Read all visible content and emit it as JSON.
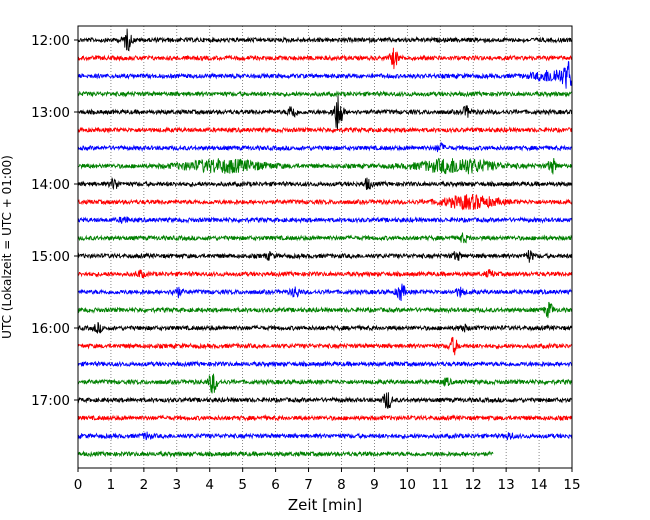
{
  "chart_data": {
    "type": "line",
    "title": "",
    "xlabel": "Zeit  [min]",
    "ylabel": "UTC (Lokalzeit = UTC + 01:00)",
    "xlim": [
      0,
      15
    ],
    "x_ticks": [
      "0",
      "1",
      "2",
      "3",
      "4",
      "5",
      "6",
      "7",
      "8",
      "9",
      "10",
      "11",
      "12",
      "13",
      "14",
      "15"
    ],
    "y_tick_labels": [
      "12:00",
      "13:00",
      "14:00",
      "15:00",
      "16:00",
      "17:00"
    ],
    "grid": "vertical dotted",
    "trace_colors": [
      "#000000",
      "#ff0000",
      "#0000ff",
      "#008000"
    ],
    "traces": [
      {
        "start": "12:00",
        "end_min": 15,
        "color": "#000000",
        "events": [
          {
            "t": 1.5,
            "amp": 10
          }
        ]
      },
      {
        "start": "12:15",
        "end_min": 15,
        "color": "#ff0000",
        "events": [
          {
            "t": 9.6,
            "amp": 9
          }
        ]
      },
      {
        "start": "12:30",
        "end_min": 15,
        "color": "#0000ff",
        "events": [
          {
            "t": 14.5,
            "amp": 6,
            "width": 0.6
          },
          {
            "t": 14.9,
            "amp": 11
          }
        ]
      },
      {
        "start": "12:45",
        "end_min": 15,
        "color": "#008000",
        "events": []
      },
      {
        "start": "13:00",
        "end_min": 15,
        "color": "#000000",
        "events": [
          {
            "t": 6.5,
            "amp": 7
          },
          {
            "t": 7.9,
            "amp": 20
          },
          {
            "t": 11.8,
            "amp": 5
          }
        ]
      },
      {
        "start": "13:15",
        "end_min": 15,
        "color": "#ff0000",
        "events": []
      },
      {
        "start": "13:30",
        "end_min": 15,
        "color": "#0000ff",
        "events": [
          {
            "t": 11.0,
            "amp": 4
          }
        ]
      },
      {
        "start": "13:45",
        "end_min": 15,
        "color": "#008000",
        "events": [
          {
            "t": 4.4,
            "amp": 6,
            "width": 1.2
          },
          {
            "t": 11.5,
            "amp": 7,
            "width": 1.1
          },
          {
            "t": 14.4,
            "amp": 7
          }
        ]
      },
      {
        "start": "14:00",
        "end_min": 15,
        "color": "#000000",
        "events": [
          {
            "t": 1.1,
            "amp": 5
          },
          {
            "t": 8.8,
            "amp": 5
          }
        ]
      },
      {
        "start": "14:15",
        "end_min": 15,
        "color": "#ff0000",
        "events": [
          {
            "t": 11.9,
            "amp": 6,
            "width": 0.8
          }
        ]
      },
      {
        "start": "14:30",
        "end_min": 15,
        "color": "#0000ff",
        "events": [
          {
            "t": 1.4,
            "amp": 3
          }
        ]
      },
      {
        "start": "14:45",
        "end_min": 15,
        "color": "#008000",
        "events": [
          {
            "t": 11.7,
            "amp": 4
          }
        ]
      },
      {
        "start": "15:00",
        "end_min": 15,
        "color": "#000000",
        "events": [
          {
            "t": 5.8,
            "amp": 3
          },
          {
            "t": 11.5,
            "amp": 4
          },
          {
            "t": 13.7,
            "amp": 5
          }
        ]
      },
      {
        "start": "15:15",
        "end_min": 15,
        "color": "#ff0000",
        "events": [
          {
            "t": 1.9,
            "amp": 3
          },
          {
            "t": 12.5,
            "amp": 3
          }
        ]
      },
      {
        "start": "15:30",
        "end_min": 15,
        "color": "#0000ff",
        "events": [
          {
            "t": 3.0,
            "amp": 5
          },
          {
            "t": 6.6,
            "amp": 5
          },
          {
            "t": 9.8,
            "amp": 8
          },
          {
            "t": 11.6,
            "amp": 4
          }
        ]
      },
      {
        "start": "15:45",
        "end_min": 15,
        "color": "#008000",
        "events": [
          {
            "t": 14.3,
            "amp": 7
          }
        ]
      },
      {
        "start": "16:00",
        "end_min": 15,
        "color": "#000000",
        "events": [
          {
            "t": 0.6,
            "amp": 4
          },
          {
            "t": 11.7,
            "amp": 3
          }
        ]
      },
      {
        "start": "16:15",
        "end_min": 15,
        "color": "#ff0000",
        "events": [
          {
            "t": 11.4,
            "amp": 8
          }
        ]
      },
      {
        "start": "16:30",
        "end_min": 15,
        "color": "#0000ff",
        "events": []
      },
      {
        "start": "16:45",
        "end_min": 15,
        "color": "#008000",
        "events": [
          {
            "t": 4.1,
            "amp": 11
          },
          {
            "t": 11.2,
            "amp": 3
          }
        ]
      },
      {
        "start": "17:00",
        "end_min": 15,
        "color": "#000000",
        "events": [
          {
            "t": 9.4,
            "amp": 9
          }
        ]
      },
      {
        "start": "17:15",
        "end_min": 15,
        "color": "#ff0000",
        "events": []
      },
      {
        "start": "17:30",
        "end_min": 15,
        "color": "#0000ff",
        "events": [
          {
            "t": 2.1,
            "amp": 3
          },
          {
            "t": 13.1,
            "amp": 3
          }
        ]
      },
      {
        "start": "17:45",
        "end_min": 12.6,
        "color": "#008000",
        "events": []
      }
    ]
  }
}
